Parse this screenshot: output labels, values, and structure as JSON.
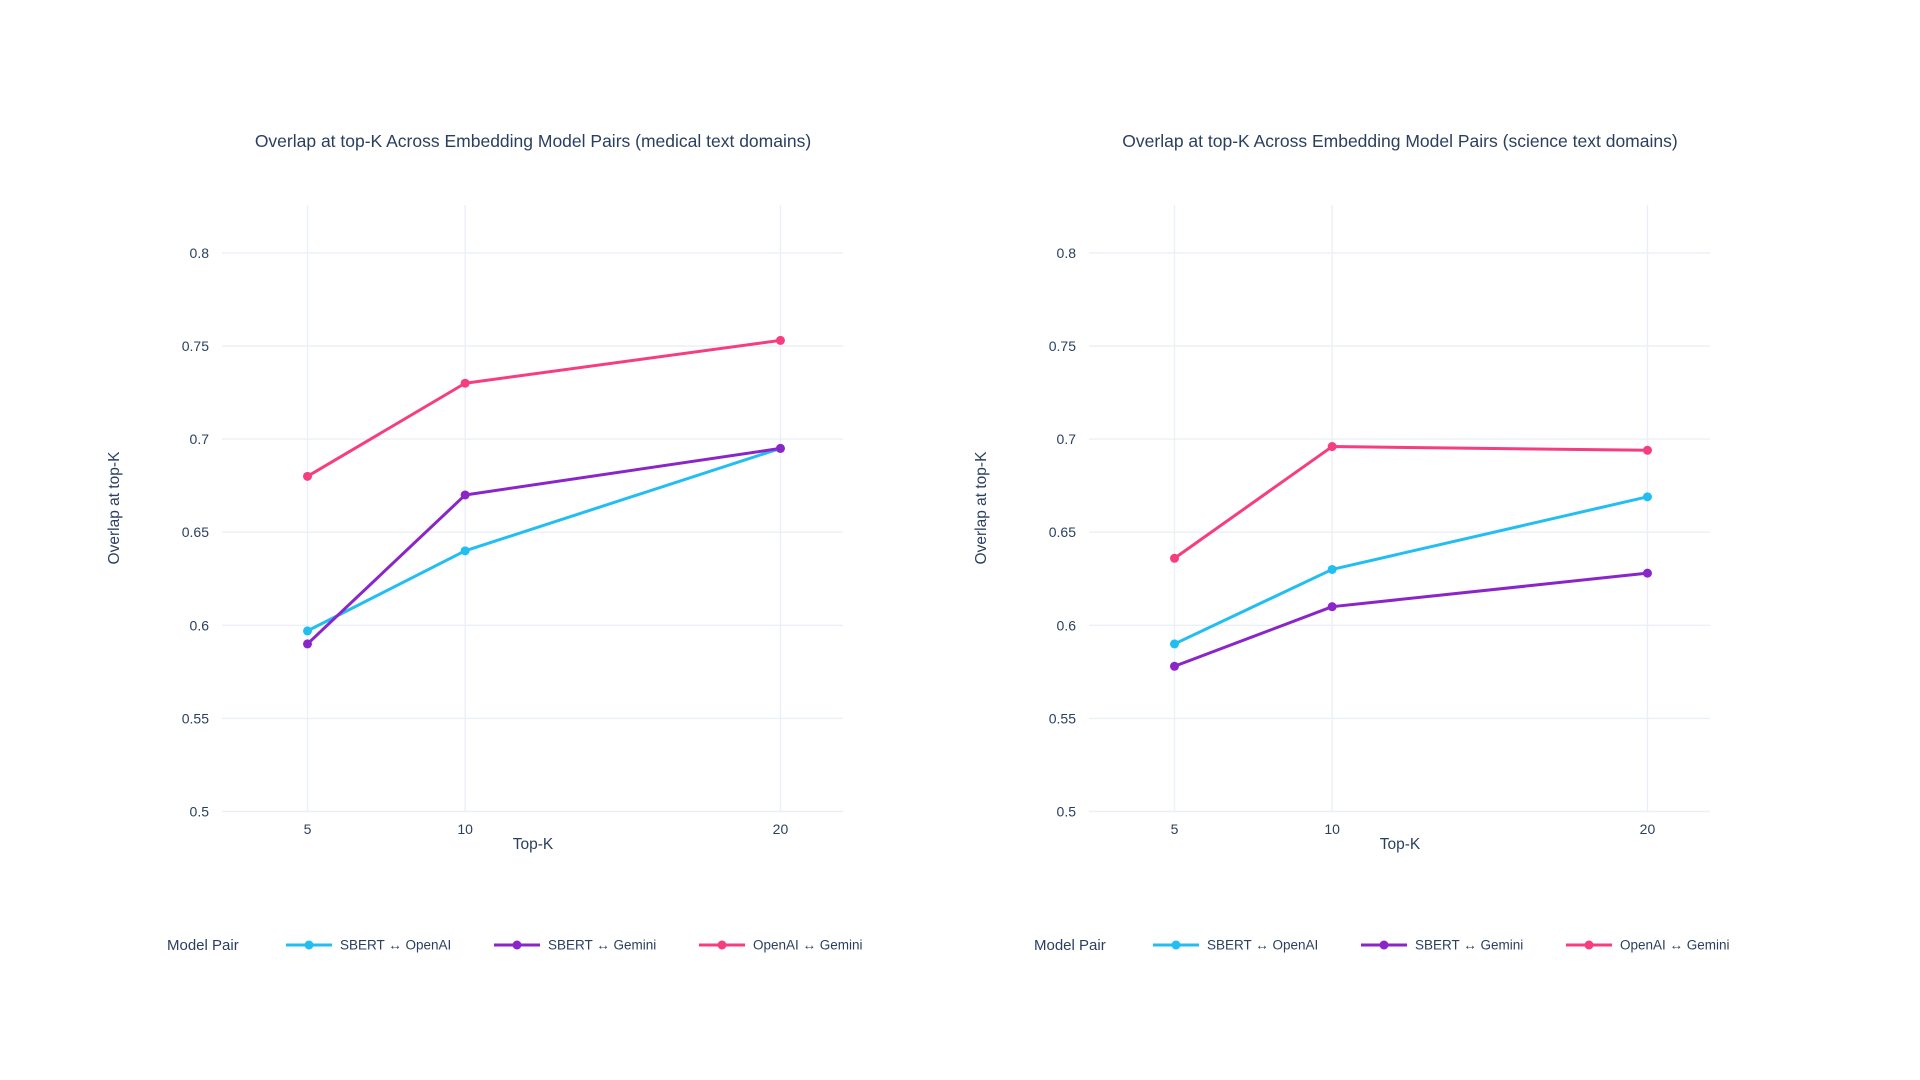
{
  "page": {
    "background": "#ffffff",
    "text_color": "#2a3f5f",
    "grid_color": "#ebeff6"
  },
  "chart_data": [
    {
      "type": "line",
      "title": "Overlap at top-K Across Embedding Model Pairs (medical text domains)",
      "xlabel": "Top-K",
      "ylabel": "Overlap at top-K",
      "legend_title": "Model Pair",
      "legend_position": "bottom",
      "grid": true,
      "x": [
        5,
        10,
        20
      ],
      "xticklabels": [
        "5",
        "10",
        "20"
      ],
      "yticks": [
        0.5,
        0.55,
        0.6,
        0.65,
        0.7,
        0.75,
        0.8
      ],
      "yticklabels": [
        "0.5",
        "0.55",
        "0.6",
        "0.65",
        "0.7",
        "0.75",
        "0.8"
      ],
      "ylim": [
        0.5,
        0.8
      ],
      "series": [
        {
          "name": "SBERT ↔ OpenAI",
          "color": "#22bef2",
          "values": [
            0.597,
            0.64,
            0.695
          ]
        },
        {
          "name": "SBERT ↔ Gemini",
          "color": "#8a26c9",
          "values": [
            0.59,
            0.67,
            0.695
          ]
        },
        {
          "name": "OpenAI ↔ Gemini",
          "color": "#f53d80",
          "values": [
            0.68,
            0.73,
            0.753
          ]
        }
      ]
    },
    {
      "type": "line",
      "title": "Overlap at top-K Across Embedding Model Pairs (science text domains)",
      "xlabel": "Top-K",
      "ylabel": "Overlap at top-K",
      "legend_title": "Model Pair",
      "legend_position": "bottom",
      "grid": true,
      "x": [
        5,
        10,
        20
      ],
      "xticklabels": [
        "5",
        "10",
        "20"
      ],
      "yticks": [
        0.5,
        0.55,
        0.6,
        0.65,
        0.7,
        0.75,
        0.8
      ],
      "yticklabels": [
        "0.5",
        "0.55",
        "0.6",
        "0.65",
        "0.7",
        "0.75",
        "0.8"
      ],
      "ylim": [
        0.5,
        0.8
      ],
      "series": [
        {
          "name": "SBERT ↔ OpenAI",
          "color": "#22bef2",
          "values": [
            0.59,
            0.63,
            0.669
          ]
        },
        {
          "name": "SBERT ↔ Gemini",
          "color": "#8a26c9",
          "values": [
            0.578,
            0.61,
            0.628
          ]
        },
        {
          "name": "OpenAI ↔ Gemini",
          "color": "#f53d80",
          "values": [
            0.636,
            0.696,
            0.694
          ]
        }
      ]
    }
  ]
}
